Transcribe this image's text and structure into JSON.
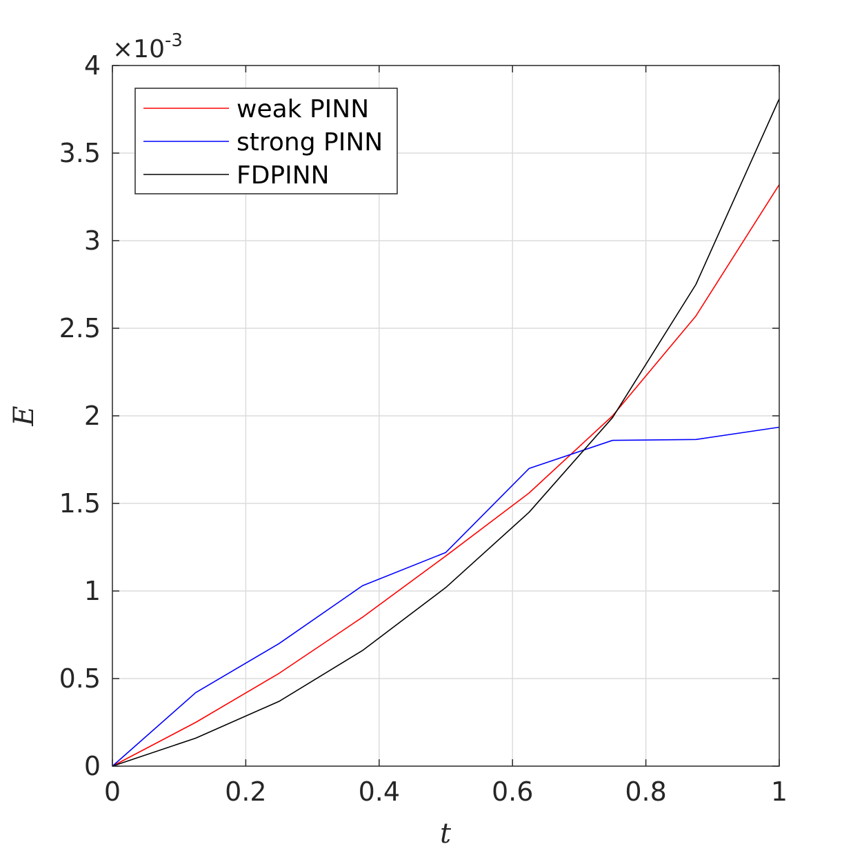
{
  "chart_data": {
    "type": "line",
    "xlabel": "t",
    "ylabel": "E",
    "xlim": [
      0,
      1
    ],
    "ylim": [
      0,
      4
    ],
    "y_exponent": {
      "prefix": "×10",
      "power": "-3"
    },
    "xticks": [
      0,
      0.2,
      0.4,
      0.6,
      0.8,
      1
    ],
    "xtick_labels": [
      "0",
      "0.2",
      "0.4",
      "0.6",
      "0.8",
      "1"
    ],
    "yticks": [
      0,
      0.5,
      1,
      1.5,
      2,
      2.5,
      3,
      3.5,
      4
    ],
    "ytick_labels": [
      "0",
      "0.5",
      "1",
      "1.5",
      "2",
      "2.5",
      "3",
      "3.5",
      "4"
    ],
    "grid": true,
    "legend_position": "top-left",
    "x": [
      0,
      0.125,
      0.25,
      0.375,
      0.5,
      0.625,
      0.75,
      0.875,
      1
    ],
    "series": [
      {
        "name": "weak PINN",
        "color": "#ff0000",
        "values": [
          0,
          0.25,
          0.53,
          0.85,
          1.2,
          1.56,
          2.0,
          2.57,
          3.32
        ]
      },
      {
        "name": "strong PINN",
        "color": "#0000ff",
        "values": [
          0,
          0.42,
          0.7,
          1.03,
          1.22,
          1.7,
          1.86,
          1.865,
          1.935
        ]
      },
      {
        "name": "FDPINN",
        "color": "#000000",
        "values": [
          0,
          0.16,
          0.37,
          0.66,
          1.02,
          1.45,
          1.99,
          2.75,
          3.81
        ]
      }
    ]
  }
}
